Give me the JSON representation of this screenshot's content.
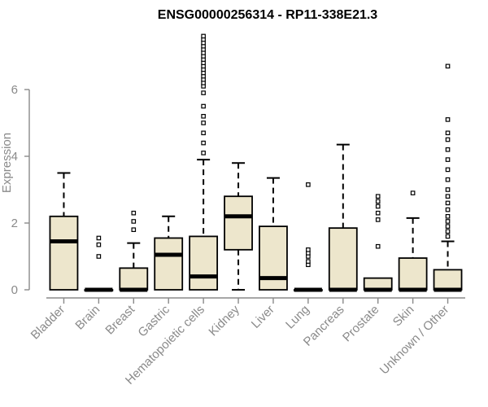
{
  "chart_data": {
    "type": "box",
    "title": "ENSG00000256314 - RP11-338E21.3",
    "ylabel": "Expression",
    "yticks": [
      0,
      2,
      4,
      6
    ],
    "ylim": [
      0,
      7.6
    ],
    "box_fill": "#ede6cc",
    "median_color": "#000000",
    "grid": false,
    "categories": [
      "Bladder",
      "Brain",
      "Breast",
      "Gastric",
      "Hematopoietic cells",
      "Kidney",
      "Liver",
      "Lung",
      "Pancreas",
      "Prostate",
      "Skin",
      "Unknown / Other"
    ],
    "series": [
      {
        "category": "Bladder",
        "min": 0,
        "q1": 0,
        "median": 1.45,
        "q3": 2.2,
        "max": 3.5,
        "outliers": []
      },
      {
        "category": "Brain",
        "min": 0,
        "q1": 0,
        "median": 0,
        "q3": 0,
        "max": 0,
        "outliers": [
          1.0,
          1.35,
          1.55
        ]
      },
      {
        "category": "Breast",
        "min": 0,
        "q1": 0,
        "median": 0,
        "q3": 0.65,
        "max": 1.4,
        "outliers": [
          1.8,
          2.05,
          2.3
        ]
      },
      {
        "category": "Gastric",
        "min": 0,
        "q1": 0,
        "median": 1.05,
        "q3": 1.55,
        "max": 2.2,
        "outliers": []
      },
      {
        "category": "Hematopoietic cells",
        "min": 0,
        "q1": 0,
        "median": 0.4,
        "q3": 1.6,
        "max": 3.9,
        "outliers": [
          4.1,
          4.4,
          4.7,
          5.0,
          5.2,
          5.5,
          5.9,
          6.1,
          6.2,
          6.3,
          6.4,
          6.5,
          6.6,
          6.7,
          6.8,
          6.9,
          7.0,
          7.1,
          7.2,
          7.3,
          7.4,
          7.5,
          7.6
        ]
      },
      {
        "category": "Kidney",
        "min": 0,
        "q1": 1.2,
        "median": 2.2,
        "q3": 2.8,
        "max": 3.8,
        "outliers": []
      },
      {
        "category": "Liver",
        "min": 0,
        "q1": 0,
        "median": 0.35,
        "q3": 1.9,
        "max": 3.35,
        "outliers": []
      },
      {
        "category": "Lung",
        "min": 0,
        "q1": 0,
        "median": 0,
        "q3": 0,
        "max": 0,
        "outliers": [
          0.75,
          0.85,
          1.0,
          1.1,
          1.2,
          3.15
        ]
      },
      {
        "category": "Pancreas",
        "min": 0,
        "q1": 0,
        "median": 0,
        "q3": 1.85,
        "max": 4.35,
        "outliers": []
      },
      {
        "category": "Prostate",
        "min": 0,
        "q1": 0,
        "median": 0,
        "q3": 0.35,
        "max": 0.35,
        "outliers": [
          1.3,
          2.1,
          2.3,
          2.5,
          2.65,
          2.8
        ]
      },
      {
        "category": "Skin",
        "min": 0,
        "q1": 0,
        "median": 0,
        "q3": 0.95,
        "max": 2.15,
        "outliers": [
          2.9
        ]
      },
      {
        "category": "Unknown / Other",
        "min": 0,
        "q1": 0,
        "median": 0,
        "q3": 0.6,
        "max": 1.45,
        "outliers": [
          1.6,
          1.75,
          1.9,
          2.05,
          2.2,
          2.4,
          2.6,
          2.8,
          3.0,
          3.3,
          3.6,
          3.9,
          4.2,
          4.5,
          4.7,
          5.1,
          6.7
        ]
      }
    ]
  }
}
